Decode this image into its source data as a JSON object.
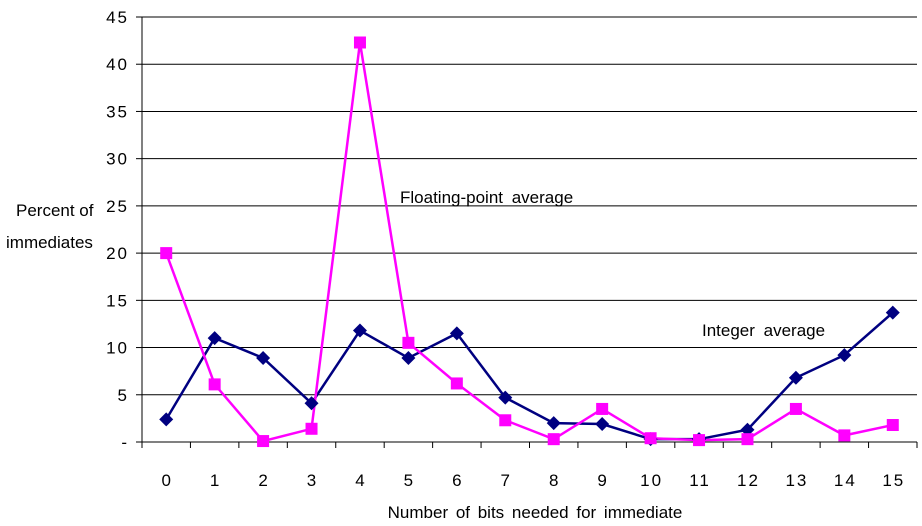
{
  "chart_data": {
    "type": "line",
    "title": "",
    "xlabel": "Number of bits needed for immediate",
    "ylabel": "Percent of immediates",
    "ylabel_lines": [
      "Percent of",
      "immediates"
    ],
    "categories": [
      "0",
      "1",
      "2",
      "3",
      "4",
      "5",
      "6",
      "7",
      "8",
      "9",
      "10",
      "11",
      "12",
      "13",
      "14",
      "15"
    ],
    "y_ticks": [
      0,
      5,
      10,
      15,
      20,
      25,
      30,
      35,
      40,
      45
    ],
    "y_tick_labels": [
      "-",
      "5",
      "10",
      "15",
      "20",
      "25",
      "30",
      "35",
      "40",
      "45"
    ],
    "ylim": [
      0,
      45
    ],
    "grid": true,
    "series": [
      {
        "name": "Integer average",
        "color": "#000080",
        "marker": "diamond",
        "values": [
          2.4,
          11.0,
          8.9,
          4.1,
          11.8,
          8.9,
          11.5,
          4.7,
          2.0,
          1.9,
          0.3,
          0.3,
          1.3,
          6.8,
          9.2,
          13.7
        ]
      },
      {
        "name": "Floating-point average",
        "color": "#FF00FF",
        "marker": "square",
        "values": [
          20.0,
          6.1,
          0.1,
          1.4,
          42.3,
          10.5,
          6.2,
          2.3,
          0.3,
          3.5,
          0.4,
          0.2,
          0.3,
          3.5,
          0.7,
          1.8
        ]
      }
    ]
  }
}
